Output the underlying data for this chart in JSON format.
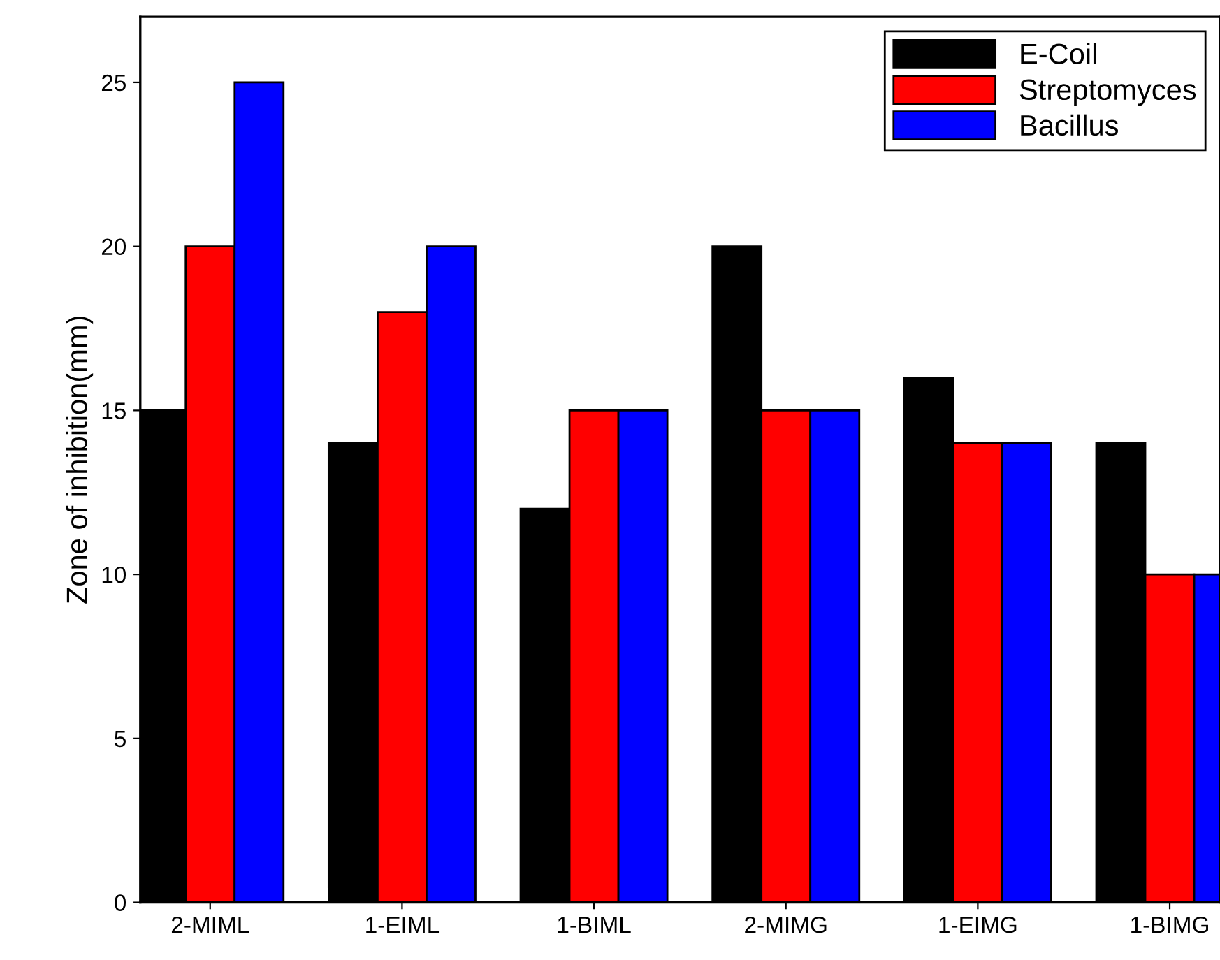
{
  "chart_data": {
    "type": "bar",
    "ylabel": "Zone of inhibition(mm)",
    "categories": [
      "2-MIML",
      "1-EIML",
      "1-BIML",
      "2-MIMG",
      "1-EIMG",
      "1-BIMG"
    ],
    "series": [
      {
        "name": "E-Coil",
        "color": "#000000",
        "values": [
          15,
          14,
          12,
          20,
          16,
          14
        ]
      },
      {
        "name": "Streptomyces",
        "color": "#ff0000",
        "values": [
          20,
          18,
          15,
          15,
          14,
          10
        ]
      },
      {
        "name": "Bacillus",
        "color": "#0000ff",
        "values": [
          25,
          20,
          15,
          15,
          14,
          10
        ]
      }
    ],
    "ylim": [
      0,
      27
    ],
    "yticks": [
      0,
      5,
      10,
      15,
      20,
      25
    ],
    "grid": false,
    "legend": "top right"
  }
}
